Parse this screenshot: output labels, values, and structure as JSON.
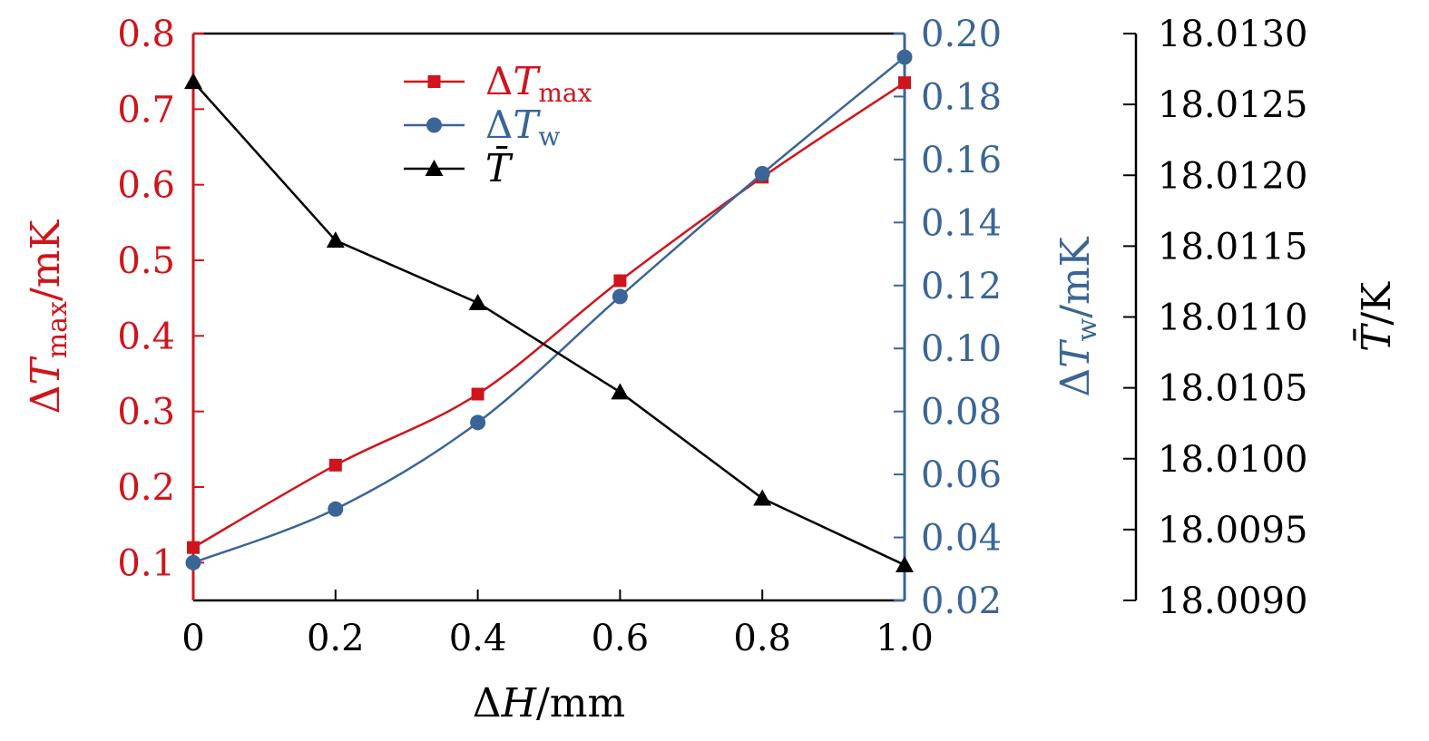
{
  "chart_data": {
    "type": "line",
    "x": [
      0,
      0.2,
      0.4,
      0.6,
      0.8,
      1.0
    ],
    "x_tick_labels": [
      "0",
      "0.2",
      "0.4",
      "0.6",
      "0.8",
      "1.0"
    ],
    "xlabel": "ΔH/mm",
    "xlim": [
      0,
      1.0
    ],
    "axes": {
      "left": {
        "label": "ΔTmax/mK",
        "ylim": [
          0.05,
          0.8
        ],
        "ticks": [
          0.1,
          0.2,
          0.3,
          0.4,
          0.5,
          0.6,
          0.7,
          0.8
        ],
        "tick_labels": [
          "0.1",
          "0.2",
          "0.3",
          "0.4",
          "0.5",
          "0.6",
          "0.7",
          "0.8"
        ],
        "color": "#d0141c"
      },
      "right1": {
        "label": "ΔTw/mK",
        "ylim": [
          0.02,
          0.2
        ],
        "ticks": [
          0.02,
          0.04,
          0.06,
          0.08,
          0.1,
          0.12,
          0.14,
          0.16,
          0.18,
          0.2
        ],
        "tick_labels": [
          "0.02",
          "0.04",
          "0.06",
          "0.08",
          "0.10",
          "0.12",
          "0.14",
          "0.16",
          "0.18",
          "0.20"
        ],
        "color": "#3a6596"
      },
      "right2": {
        "label": "T̄/K",
        "ylim": [
          18.009,
          18.013
        ],
        "ticks": [
          18.009,
          18.0095,
          18.01,
          18.0105,
          18.011,
          18.0115,
          18.012,
          18.0125,
          18.013
        ],
        "tick_labels": [
          "18.0090",
          "18.0095",
          "18.0100",
          "18.0105",
          "18.0110",
          "18.0115",
          "18.0120",
          "18.0125",
          "18.0130"
        ],
        "color": "#000000"
      }
    },
    "series": [
      {
        "name": "ΔTmax",
        "axis": "left",
        "marker": "square",
        "color": "#d0141c",
        "values": [
          0.12,
          0.229,
          0.323,
          0.473,
          0.61,
          0.735
        ]
      },
      {
        "name": "ΔTw",
        "axis": "right1",
        "marker": "circle",
        "color": "#3a6596",
        "values": [
          0.032,
          0.049,
          0.0765,
          0.1165,
          0.1555,
          0.1925
        ]
      },
      {
        "name": "T̄",
        "axis": "right2",
        "marker": "triangle",
        "color": "#000000",
        "values": [
          18.01266,
          18.01154,
          18.0111,
          18.01047,
          18.00972,
          18.00925
        ]
      }
    ],
    "legend_position": "top-left",
    "grid": false
  }
}
